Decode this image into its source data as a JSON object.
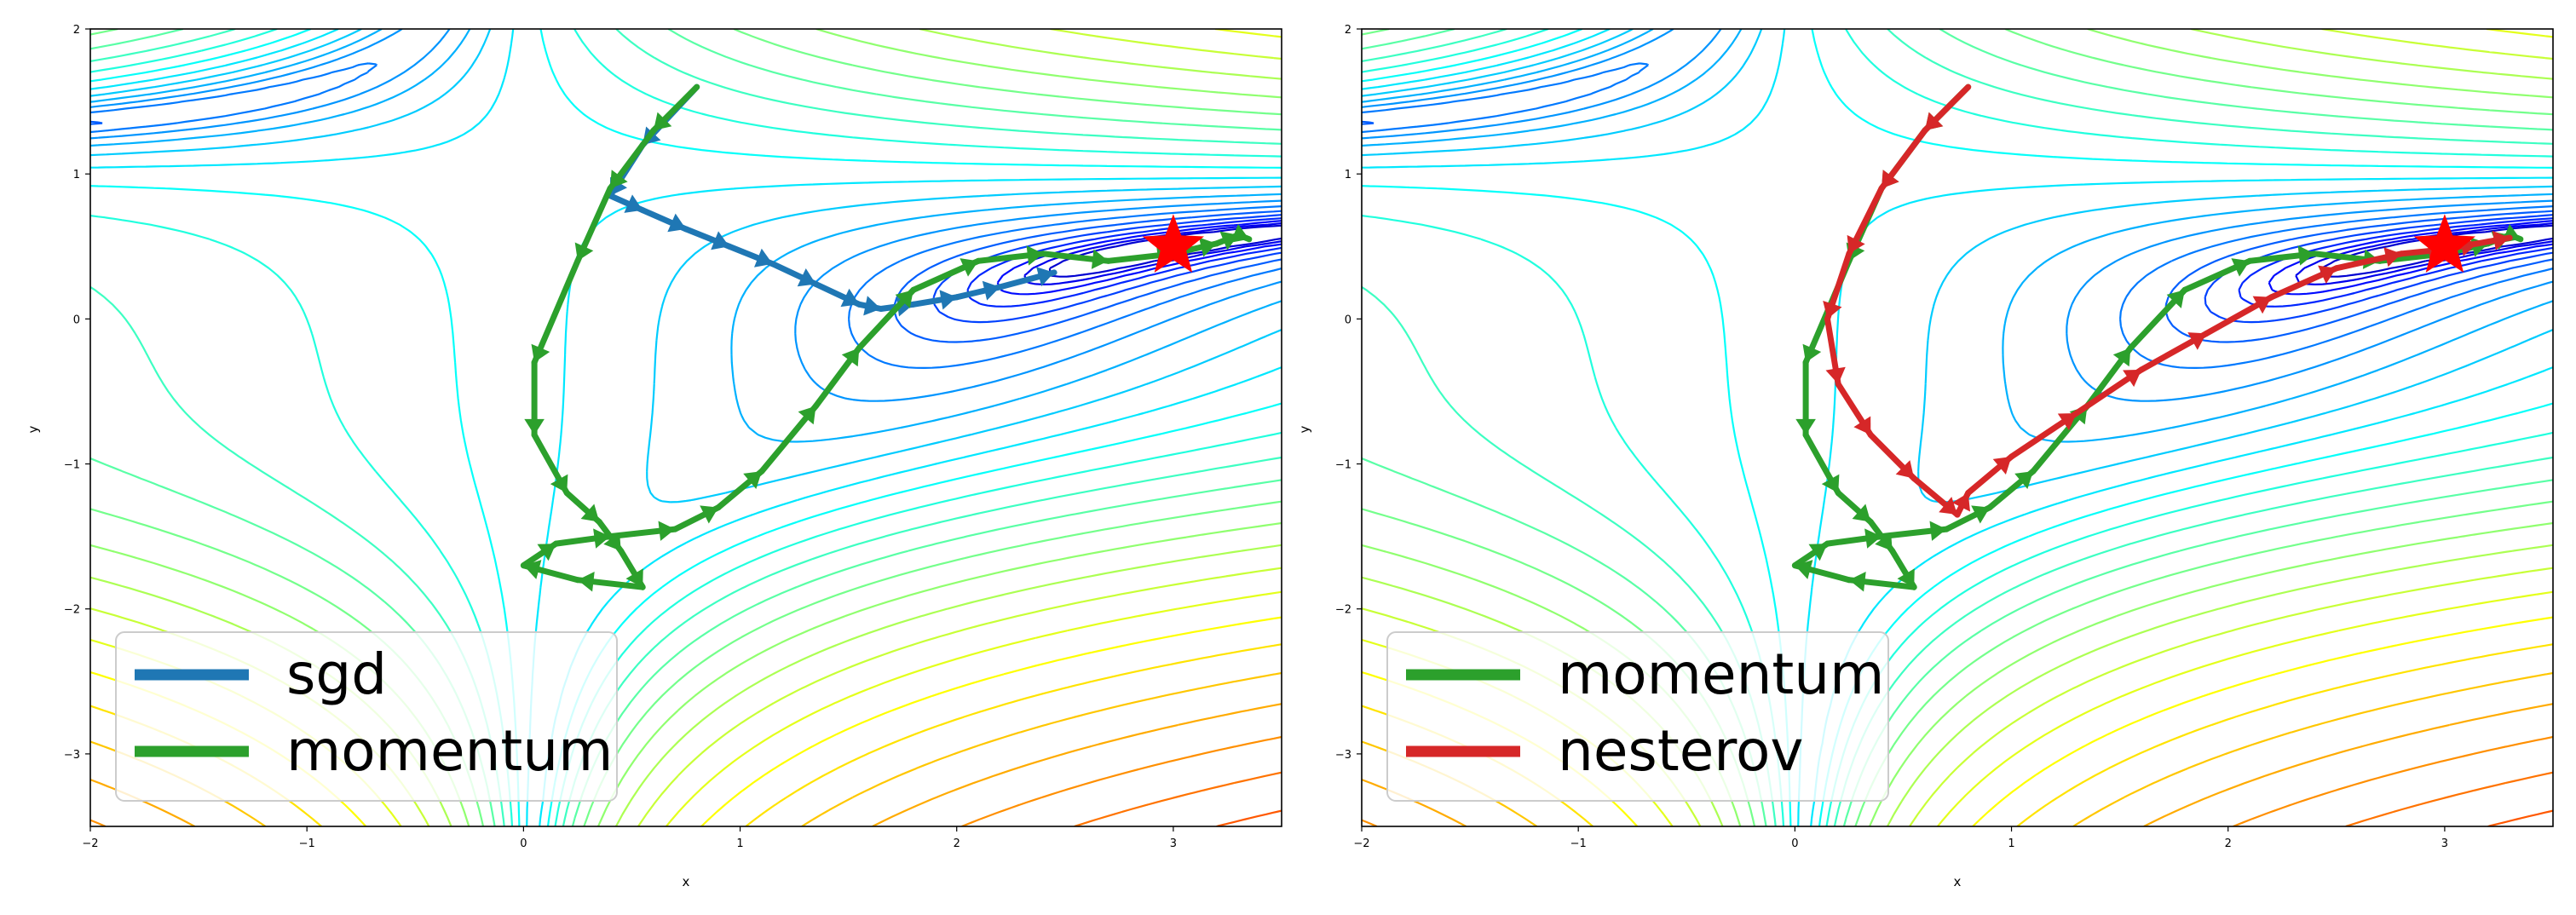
{
  "chart_data": [
    {
      "type": "line",
      "xlabel": "x",
      "ylabel": "y",
      "xlim": [
        -2,
        3.5
      ],
      "ylim": [
        -3.5,
        2
      ],
      "xticks": [
        -2,
        -1,
        0,
        1,
        2,
        3
      ],
      "yticks": [
        -3,
        -2,
        -1,
        0,
        1,
        2
      ],
      "xtick_labels": [
        "−2",
        "−1",
        "0",
        "1",
        "2",
        "3"
      ],
      "ytick_labels": [
        "−3",
        "−2",
        "−1",
        "0",
        "1",
        "2"
      ],
      "background": "contour of Beale-like loss surface",
      "legend_position": "lower-left",
      "target": {
        "x": 3.0,
        "y": 0.5,
        "marker": "star",
        "color": "#ff0000"
      },
      "series": [
        {
          "name": "sgd",
          "color": "#1f77b4",
          "style": "arrows",
          "points": [
            [
              0.8,
              1.6
            ],
            [
              0.55,
              1.2
            ],
            [
              0.4,
              0.85
            ],
            [
              0.55,
              0.75
            ],
            [
              0.75,
              0.62
            ],
            [
              0.95,
              0.5
            ],
            [
              1.15,
              0.38
            ],
            [
              1.35,
              0.24
            ],
            [
              1.55,
              0.1
            ],
            [
              1.65,
              0.07
            ],
            [
              1.8,
              0.1
            ],
            [
              2.0,
              0.15
            ],
            [
              2.2,
              0.22
            ],
            [
              2.45,
              0.32
            ]
          ]
        },
        {
          "name": "momentum",
          "color": "#2ca02c",
          "style": "arrows",
          "points": [
            [
              0.8,
              1.6
            ],
            [
              0.6,
              1.3
            ],
            [
              0.4,
              0.9
            ],
            [
              0.25,
              0.4
            ],
            [
              0.05,
              -0.3
            ],
            [
              0.05,
              -0.8
            ],
            [
              0.2,
              -1.2
            ],
            [
              0.35,
              -1.4
            ],
            [
              0.45,
              -1.6
            ],
            [
              0.55,
              -1.85
            ],
            [
              0.25,
              -1.8
            ],
            [
              0.0,
              -1.7
            ],
            [
              0.15,
              -1.55
            ],
            [
              0.4,
              -1.5
            ],
            [
              0.7,
              -1.45
            ],
            [
              0.9,
              -1.3
            ],
            [
              1.1,
              -1.05
            ],
            [
              1.35,
              -0.6
            ],
            [
              1.55,
              -0.2
            ],
            [
              1.8,
              0.2
            ],
            [
              2.1,
              0.4
            ],
            [
              2.4,
              0.45
            ],
            [
              2.7,
              0.4
            ],
            [
              3.0,
              0.45
            ],
            [
              3.2,
              0.52
            ],
            [
              3.3,
              0.58
            ],
            [
              3.35,
              0.55
            ]
          ]
        }
      ],
      "legend": [
        "sgd",
        "momentum"
      ]
    },
    {
      "type": "line",
      "xlabel": "x",
      "ylabel": "y",
      "xlim": [
        -2,
        3.5
      ],
      "ylim": [
        -3.5,
        2
      ],
      "xticks": [
        -2,
        -1,
        0,
        1,
        2,
        3
      ],
      "yticks": [
        -3,
        -2,
        -1,
        0,
        1,
        2
      ],
      "xtick_labels": [
        "−2",
        "−1",
        "0",
        "1",
        "2",
        "3"
      ],
      "ytick_labels": [
        "−3",
        "−2",
        "−1",
        "0",
        "1",
        "2"
      ],
      "background": "contour of Beale-like loss surface",
      "legend_position": "lower-left",
      "target": {
        "x": 3.0,
        "y": 0.5,
        "marker": "star",
        "color": "#ff0000"
      },
      "series": [
        {
          "name": "momentum",
          "color": "#2ca02c",
          "style": "arrows",
          "points": [
            [
              0.8,
              1.6
            ],
            [
              0.6,
              1.3
            ],
            [
              0.4,
              0.9
            ],
            [
              0.25,
              0.4
            ],
            [
              0.05,
              -0.3
            ],
            [
              0.05,
              -0.8
            ],
            [
              0.2,
              -1.2
            ],
            [
              0.35,
              -1.4
            ],
            [
              0.45,
              -1.6
            ],
            [
              0.55,
              -1.85
            ],
            [
              0.25,
              -1.8
            ],
            [
              0.0,
              -1.7
            ],
            [
              0.15,
              -1.55
            ],
            [
              0.4,
              -1.5
            ],
            [
              0.7,
              -1.45
            ],
            [
              0.9,
              -1.3
            ],
            [
              1.1,
              -1.05
            ],
            [
              1.35,
              -0.6
            ],
            [
              1.55,
              -0.2
            ],
            [
              1.8,
              0.2
            ],
            [
              2.1,
              0.4
            ],
            [
              2.4,
              0.45
            ],
            [
              2.7,
              0.4
            ],
            [
              3.0,
              0.45
            ],
            [
              3.2,
              0.52
            ],
            [
              3.3,
              0.58
            ],
            [
              3.35,
              0.55
            ]
          ]
        },
        {
          "name": "nesterov",
          "color": "#d62728",
          "style": "arrows",
          "points": [
            [
              0.8,
              1.6
            ],
            [
              0.6,
              1.3
            ],
            [
              0.4,
              0.9
            ],
            [
              0.25,
              0.45
            ],
            [
              0.15,
              0.0
            ],
            [
              0.2,
              -0.45
            ],
            [
              0.35,
              -0.8
            ],
            [
              0.55,
              -1.1
            ],
            [
              0.75,
              -1.35
            ],
            [
              0.8,
              -1.2
            ],
            [
              1.0,
              -0.95
            ],
            [
              1.3,
              -0.65
            ],
            [
              1.6,
              -0.35
            ],
            [
              1.9,
              -0.1
            ],
            [
              2.2,
              0.15
            ],
            [
              2.5,
              0.35
            ],
            [
              2.8,
              0.45
            ],
            [
              3.0,
              0.48
            ],
            [
              3.15,
              0.52
            ],
            [
              3.3,
              0.56
            ]
          ]
        }
      ],
      "legend": [
        "momentum",
        "nesterov"
      ]
    }
  ]
}
